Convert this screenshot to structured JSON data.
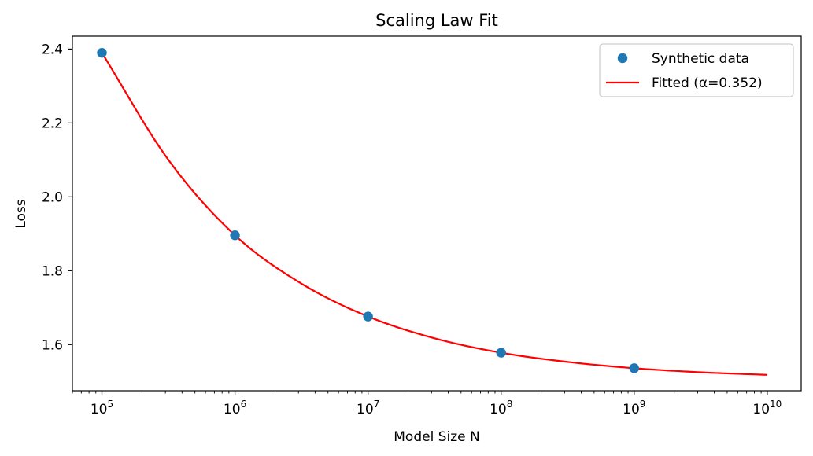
{
  "chart_data": {
    "type": "scatter",
    "title": "Scaling Law Fit",
    "xlabel": "Model Size N",
    "ylabel": "Loss",
    "xscale": "log",
    "xlim": [
      60000,
      18000000000
    ],
    "ylim": [
      1.475,
      2.435
    ],
    "x_ticks": [
      {
        "value": 100000,
        "base": "10",
        "exp": "5"
      },
      {
        "value": 1000000,
        "base": "10",
        "exp": "6"
      },
      {
        "value": 10000000,
        "base": "10",
        "exp": "7"
      },
      {
        "value": 100000000,
        "base": "10",
        "exp": "8"
      },
      {
        "value": 1000000000,
        "base": "10",
        "exp": "9"
      },
      {
        "value": 10000000000,
        "base": "10",
        "exp": "10"
      }
    ],
    "y_ticks": [
      {
        "value": 1.6,
        "label": "1.6"
      },
      {
        "value": 1.8,
        "label": "1.8"
      },
      {
        "value": 2.0,
        "label": "2.0"
      },
      {
        "value": 2.2,
        "label": "2.2"
      },
      {
        "value": 2.4,
        "label": "2.4"
      }
    ],
    "grid": false,
    "legend_position": "top-right",
    "series": [
      {
        "name": "Synthetic data",
        "kind": "scatter",
        "color": "#1f77b4",
        "points": [
          {
            "x": 100000,
            "y": 2.39
          },
          {
            "x": 1000000,
            "y": 1.896
          },
          {
            "x": 10000000,
            "y": 1.676
          },
          {
            "x": 100000000,
            "y": 1.578
          },
          {
            "x": 1000000000,
            "y": 1.536
          }
        ]
      },
      {
        "name": "Fitted (α=0.352)",
        "kind": "line",
        "color": "#ff0000",
        "points": [
          {
            "x": 100000,
            "y": 2.39
          },
          {
            "x": 316228,
            "y": 2.1
          },
          {
            "x": 1000000,
            "y": 1.896
          },
          {
            "x": 3162278,
            "y": 1.765
          },
          {
            "x": 10000000,
            "y": 1.676
          },
          {
            "x": 31622777,
            "y": 1.617
          },
          {
            "x": 100000000,
            "y": 1.578
          },
          {
            "x": 316227766,
            "y": 1.553
          },
          {
            "x": 1000000000,
            "y": 1.536
          },
          {
            "x": 3162277660,
            "y": 1.525
          },
          {
            "x": 10000000000,
            "y": 1.518
          }
        ]
      }
    ]
  }
}
